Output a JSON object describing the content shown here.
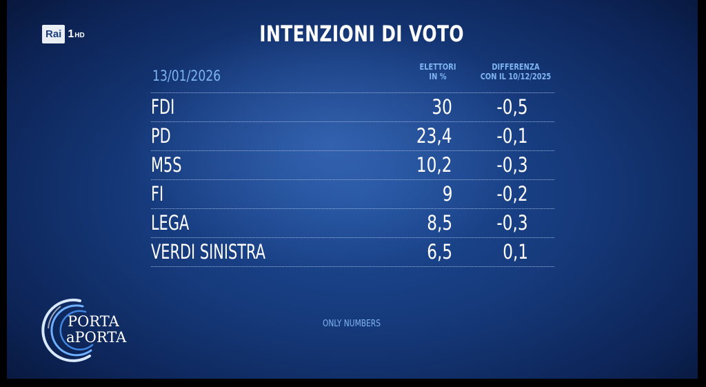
{
  "logo": {
    "brand": "Rai",
    "channel": "1",
    "quality": "HD"
  },
  "title": "INTENZIONI DI VOTO",
  "date": "13/01/2026",
  "columns": {
    "votes_l1": "ELETTORI",
    "votes_l2": "IN %",
    "diff_l1": "DIFFERENZA",
    "diff_l2": "CON IL 10/12/2025"
  },
  "rows": [
    {
      "party": "FDI",
      "value": "30",
      "diff": "-0,5"
    },
    {
      "party": "PD",
      "value": "23,4",
      "diff": "-0,1"
    },
    {
      "party": "M5S",
      "value": "10,2",
      "diff": "-0,3"
    },
    {
      "party": "FI",
      "value": "9",
      "diff": "-0,2"
    },
    {
      "party": "LEGA",
      "value": "8,5",
      "diff": "-0,3"
    },
    {
      "party": "VERDI SINISTRA",
      "value": "6,5",
      "diff": "0,1"
    }
  ],
  "note": "ONLY NUMBERS",
  "show_logo": {
    "line1": "PORTA",
    "line2": "aPORTA"
  },
  "colors": {
    "accent": "#7fb4f2",
    "background": "#163a7c",
    "text": "#ffffff"
  }
}
